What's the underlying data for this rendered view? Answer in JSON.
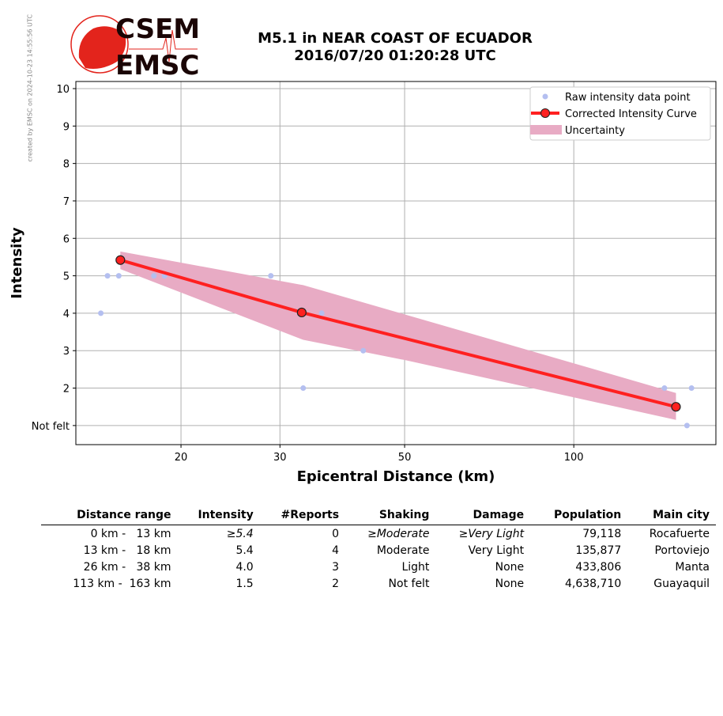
{
  "side_note": "created by EMSC on 2024-10-23 14:55:56 UTC",
  "logo": {
    "top": "CSEM",
    "bottom": "EMSC"
  },
  "title": {
    "line1": "M5.1 in NEAR COAST OF ECUADOR",
    "line2": "2016/07/20 01:20:28 UTC"
  },
  "colors": {
    "raw": "#b4bff0",
    "curve": "#ff2020",
    "band": "#e8abc4"
  },
  "chart_data": {
    "type": "line",
    "xscale": "log",
    "xlabel": "Epicentral Distance (km)",
    "ylabel": "Intensity",
    "xlim": [
      13.0,
      179
    ],
    "ylim": [
      0.49,
      10.19
    ],
    "xticks": [
      20,
      30,
      50,
      100
    ],
    "yticks": [
      {
        "v": 1,
        "label": "Not felt"
      },
      {
        "v": 2,
        "label": "2"
      },
      {
        "v": 3,
        "label": "3"
      },
      {
        "v": 4,
        "label": "4"
      },
      {
        "v": 5,
        "label": "5"
      },
      {
        "v": 6,
        "label": "6"
      },
      {
        "v": 7,
        "label": "7"
      },
      {
        "v": 8,
        "label": "8"
      },
      {
        "v": 9,
        "label": "9"
      },
      {
        "v": 10,
        "label": "10"
      }
    ],
    "grid": true,
    "legend_position": "top-right",
    "legend": [
      "Raw intensity data point",
      "Corrected Intensity Curve",
      "Uncertainty"
    ],
    "raw_points": [
      [
        14.4,
        4
      ],
      [
        14.8,
        5
      ],
      [
        15.5,
        5
      ],
      [
        17.9,
        5
      ],
      [
        18.7,
        5
      ],
      [
        28.9,
        5
      ],
      [
        33.0,
        2
      ],
      [
        35.6,
        4
      ],
      [
        42.2,
        3
      ],
      [
        145,
        2
      ],
      [
        159,
        1
      ],
      [
        162,
        2
      ]
    ],
    "curve": [
      [
        15.6,
        5.42
      ],
      [
        32.8,
        4.02
      ],
      [
        152,
        1.5
      ]
    ],
    "band_upper": [
      [
        15.6,
        5.65
      ],
      [
        33.0,
        4.75
      ],
      [
        50,
        3.97
      ],
      [
        152,
        1.87
      ]
    ],
    "band_lower": [
      [
        15.6,
        5.18
      ],
      [
        33.0,
        3.29
      ],
      [
        50,
        2.75
      ],
      [
        152,
        1.15
      ]
    ]
  },
  "table": {
    "headers": [
      "Distance range",
      "Intensity",
      "#Reports",
      "Shaking",
      "Damage",
      "Population",
      "Main city"
    ],
    "rows": [
      {
        "range": "0 km -   13 km",
        "intensity": "≥5.4",
        "reports": "0",
        "shaking": "≥Moderate",
        "damage": "≥Very Light",
        "population": "79,118",
        "city": "Rocafuerte",
        "italic": true
      },
      {
        "range": "13 km -   18 km",
        "intensity": "5.4",
        "reports": "4",
        "shaking": "Moderate",
        "damage": "Very Light",
        "population": "135,877",
        "city": "Portoviejo"
      },
      {
        "range": "26 km -   38 km",
        "intensity": "4.0",
        "reports": "3",
        "shaking": "Light",
        "damage": "None",
        "population": "433,806",
        "city": "Manta"
      },
      {
        "range": "113 km -  163 km",
        "intensity": "1.5",
        "reports": "2",
        "shaking": "Not felt",
        "damage": "None",
        "population": "4,638,710",
        "city": "Guayaquil"
      }
    ]
  }
}
